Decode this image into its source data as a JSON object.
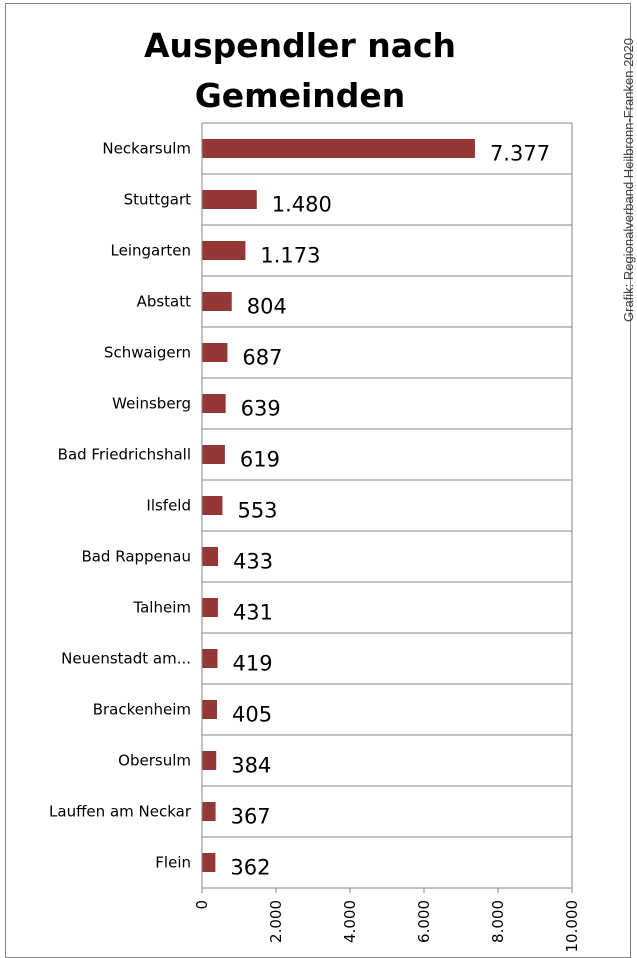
{
  "title_line1": "Auspendler nach",
  "title_line2": "Gemeinden",
  "credit": "Grafik: Regionalverband Heilbronn-Franken 2020",
  "chart_data": {
    "type": "bar",
    "orientation": "horizontal",
    "categories": [
      "Neckarsulm",
      "Stuttgart",
      "Leingarten",
      "Abstatt",
      "Schwaigern",
      "Weinsberg",
      "Bad Friedrichshall",
      "Ilsfeld",
      "Bad Rappenau",
      "Talheim",
      "Neuenstadt am...",
      "Brackenheim",
      "Obersulm",
      "Lauffen am Neckar",
      "Flein"
    ],
    "values": [
      7377,
      1480,
      1173,
      804,
      687,
      639,
      619,
      553,
      433,
      431,
      419,
      405,
      384,
      367,
      362
    ],
    "value_labels": [
      "7.377",
      "1.480",
      "1.173",
      "804",
      "687",
      "639",
      "619",
      "553",
      "433",
      "431",
      "419",
      "405",
      "384",
      "367",
      "362"
    ],
    "xlim": [
      0,
      10000
    ],
    "xticks": [
      0,
      2000,
      4000,
      6000,
      8000,
      10000
    ],
    "xtick_labels": [
      "0",
      "2.000",
      "4.000",
      "6.000",
      "8.000",
      "10.000"
    ],
    "grid": "horizontal",
    "bar_color": "#953735"
  }
}
